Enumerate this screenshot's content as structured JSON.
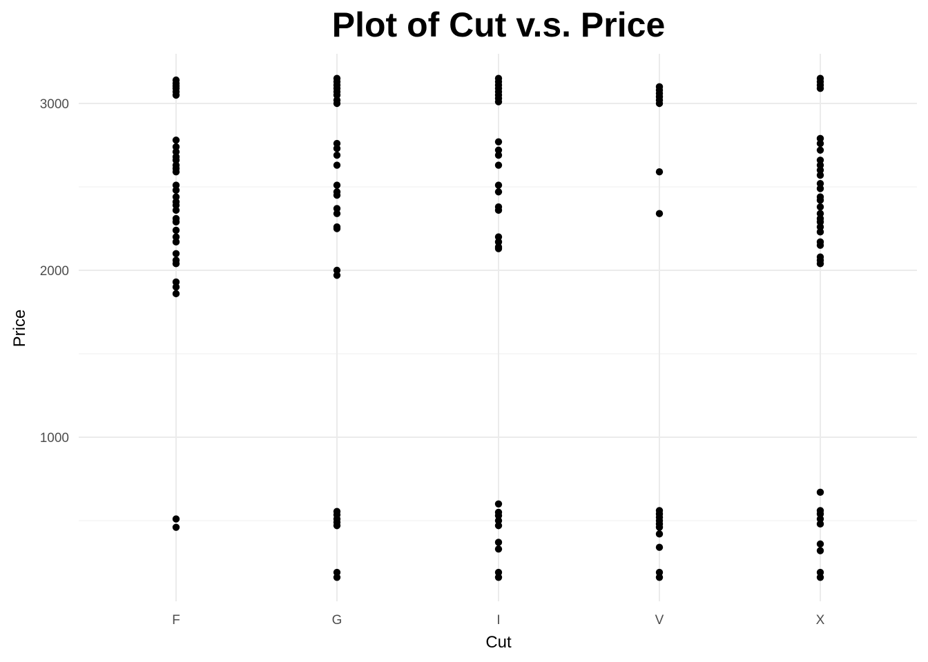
{
  "chart_data": {
    "type": "scatter",
    "title": "Plot of Cut v.s. Price",
    "xlabel": "Cut",
    "ylabel": "Price",
    "categories": [
      "F",
      "G",
      "I",
      "V",
      "X"
    ],
    "yticks": [
      1000,
      2000,
      3000
    ],
    "ylim": [
      100,
      3300
    ],
    "grid": true,
    "legend": "none",
    "points": [
      {
        "x": "F",
        "y": [
          3140,
          3120,
          3105,
          3090,
          3070,
          3050,
          2780,
          2740,
          2710,
          2680,
          2660,
          2630,
          2610,
          2590,
          2510,
          2480,
          2440,
          2410,
          2390,
          2360,
          2310,
          2290,
          2240,
          2200,
          2170,
          2100,
          2060,
          2040,
          1930,
          1900,
          1860,
          510,
          460
        ]
      },
      {
        "x": "G",
        "y": [
          3150,
          3130,
          3110,
          3090,
          3070,
          3050,
          3020,
          3000,
          2760,
          2730,
          2690,
          2630,
          2510,
          2470,
          2450,
          2370,
          2340,
          2260,
          2250,
          2000,
          1970,
          555,
          535,
          510,
          490,
          470,
          190,
          160
        ]
      },
      {
        "x": "I",
        "y": [
          3150,
          3130,
          3110,
          3090,
          3070,
          3050,
          3030,
          3010,
          2770,
          2720,
          2690,
          2630,
          2510,
          2470,
          2380,
          2360,
          2200,
          2170,
          2140,
          2130,
          600,
          550,
          530,
          500,
          470,
          370,
          330,
          190,
          160
        ]
      },
      {
        "x": "V",
        "y": [
          3100,
          3080,
          3060,
          3040,
          3020,
          3000,
          2590,
          2340,
          560,
          540,
          520,
          500,
          480,
          460,
          420,
          340,
          190,
          160
        ]
      },
      {
        "x": "X",
        "y": [
          3150,
          3130,
          3110,
          3090,
          2790,
          2760,
          2720,
          2660,
          2630,
          2600,
          2570,
          2520,
          2490,
          2440,
          2420,
          2380,
          2340,
          2310,
          2290,
          2260,
          2230,
          2170,
          2150,
          2080,
          2060,
          2040,
          670,
          560,
          540,
          510,
          480,
          360,
          320,
          190,
          160
        ]
      }
    ]
  }
}
